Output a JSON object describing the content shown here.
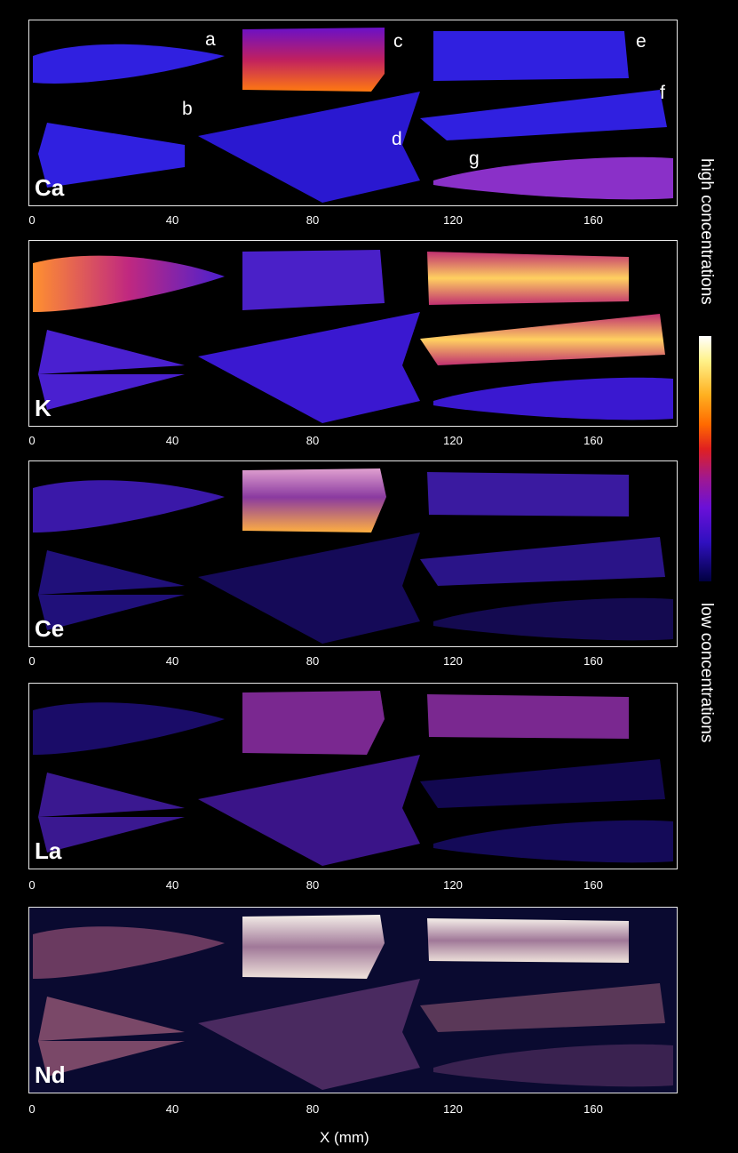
{
  "panels": [
    {
      "element": "Ca",
      "palette": "ca"
    },
    {
      "element": "K",
      "palette": "k"
    },
    {
      "element": "Ce",
      "palette": "ce"
    },
    {
      "element": "La",
      "palette": "la"
    },
    {
      "element": "Nd",
      "palette": "nd"
    }
  ],
  "sample_letters": [
    "a",
    "b",
    "c",
    "d",
    "e",
    "f",
    "g"
  ],
  "x_ticks": [
    "0",
    "40",
    "80",
    "120",
    "160"
  ],
  "x_axis_label": "X (mm)",
  "colorbar": {
    "high_label": "high concentrations",
    "low_label": "low concentrations"
  },
  "colors": {
    "background": "#000000",
    "low": "#1a10b0",
    "mid": "#c01880",
    "high": "#ffffff"
  }
}
